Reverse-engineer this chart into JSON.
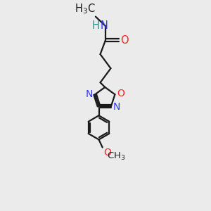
{
  "background_color": "#ebebeb",
  "bond_color": "#1a1a1a",
  "N_color": "#3333ff",
  "O_color": "#ff2222",
  "H_color": "#2a9090",
  "line_width": 1.6,
  "font_size": 10.5,
  "figsize": [
    3.0,
    3.0
  ],
  "dpi": 100,
  "xlim": [
    0.2,
    2.8
  ],
  "ylim": [
    0.0,
    7.5
  ]
}
